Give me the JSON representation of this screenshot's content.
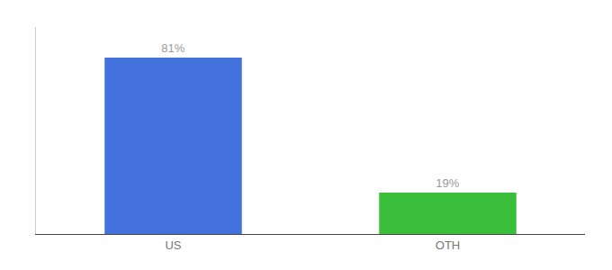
{
  "chart_data": {
    "type": "bar",
    "categories": [
      "US",
      "OTH"
    ],
    "values": [
      81,
      19
    ],
    "value_labels": [
      "81%",
      "19%"
    ],
    "data_labels": true,
    "colors": [
      "#4472dd",
      "#3abf3a"
    ],
    "ylim": [
      0,
      95
    ],
    "grid": false,
    "tick_labels": "x"
  }
}
